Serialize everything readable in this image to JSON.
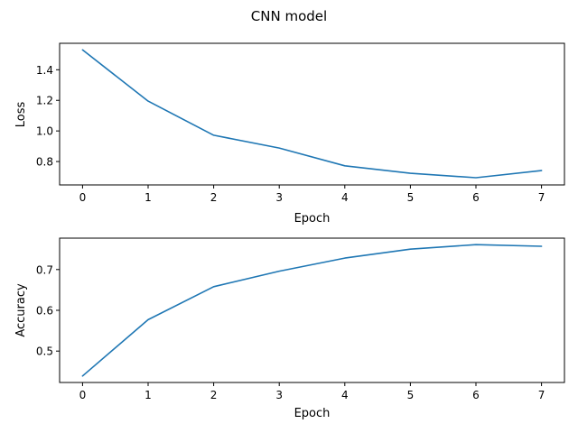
{
  "figure": {
    "title": "CNN model"
  },
  "colors": {
    "series": "#1f77b4",
    "axes": "#000000",
    "background": "#ffffff"
  },
  "chart_data": [
    {
      "type": "line",
      "xlabel": "Epoch",
      "ylabel": "Loss",
      "x": [
        0,
        1,
        2,
        3,
        4,
        5,
        6,
        7
      ],
      "xlim": [
        -0.35,
        7.35
      ],
      "xticks": [
        0,
        1,
        2,
        3,
        4,
        5,
        6,
        7
      ],
      "ylim": [
        0.647,
        1.573
      ],
      "yticks": [
        0.8,
        1.0,
        1.2,
        1.4
      ],
      "ytick_labels": [
        "0.8",
        "1.0",
        "1.2",
        "1.4"
      ],
      "grid": false,
      "series": [
        {
          "values": [
            1.53,
            1.195,
            0.972,
            0.888,
            0.772,
            0.723,
            0.694,
            0.741
          ]
        }
      ]
    },
    {
      "type": "line",
      "xlabel": "Epoch",
      "ylabel": "Accuracy",
      "x": [
        0,
        1,
        2,
        3,
        4,
        5,
        6,
        7
      ],
      "xlim": [
        -0.35,
        7.35
      ],
      "xticks": [
        0,
        1,
        2,
        3,
        4,
        5,
        6,
        7
      ],
      "ylim": [
        0.423,
        0.777
      ],
      "yticks": [
        0.5,
        0.6,
        0.7
      ],
      "ytick_labels": [
        "0.5",
        "0.6",
        "0.7"
      ],
      "grid": false,
      "series": [
        {
          "values": [
            0.439,
            0.577,
            0.658,
            0.696,
            0.728,
            0.75,
            0.761,
            0.757
          ]
        }
      ]
    }
  ]
}
